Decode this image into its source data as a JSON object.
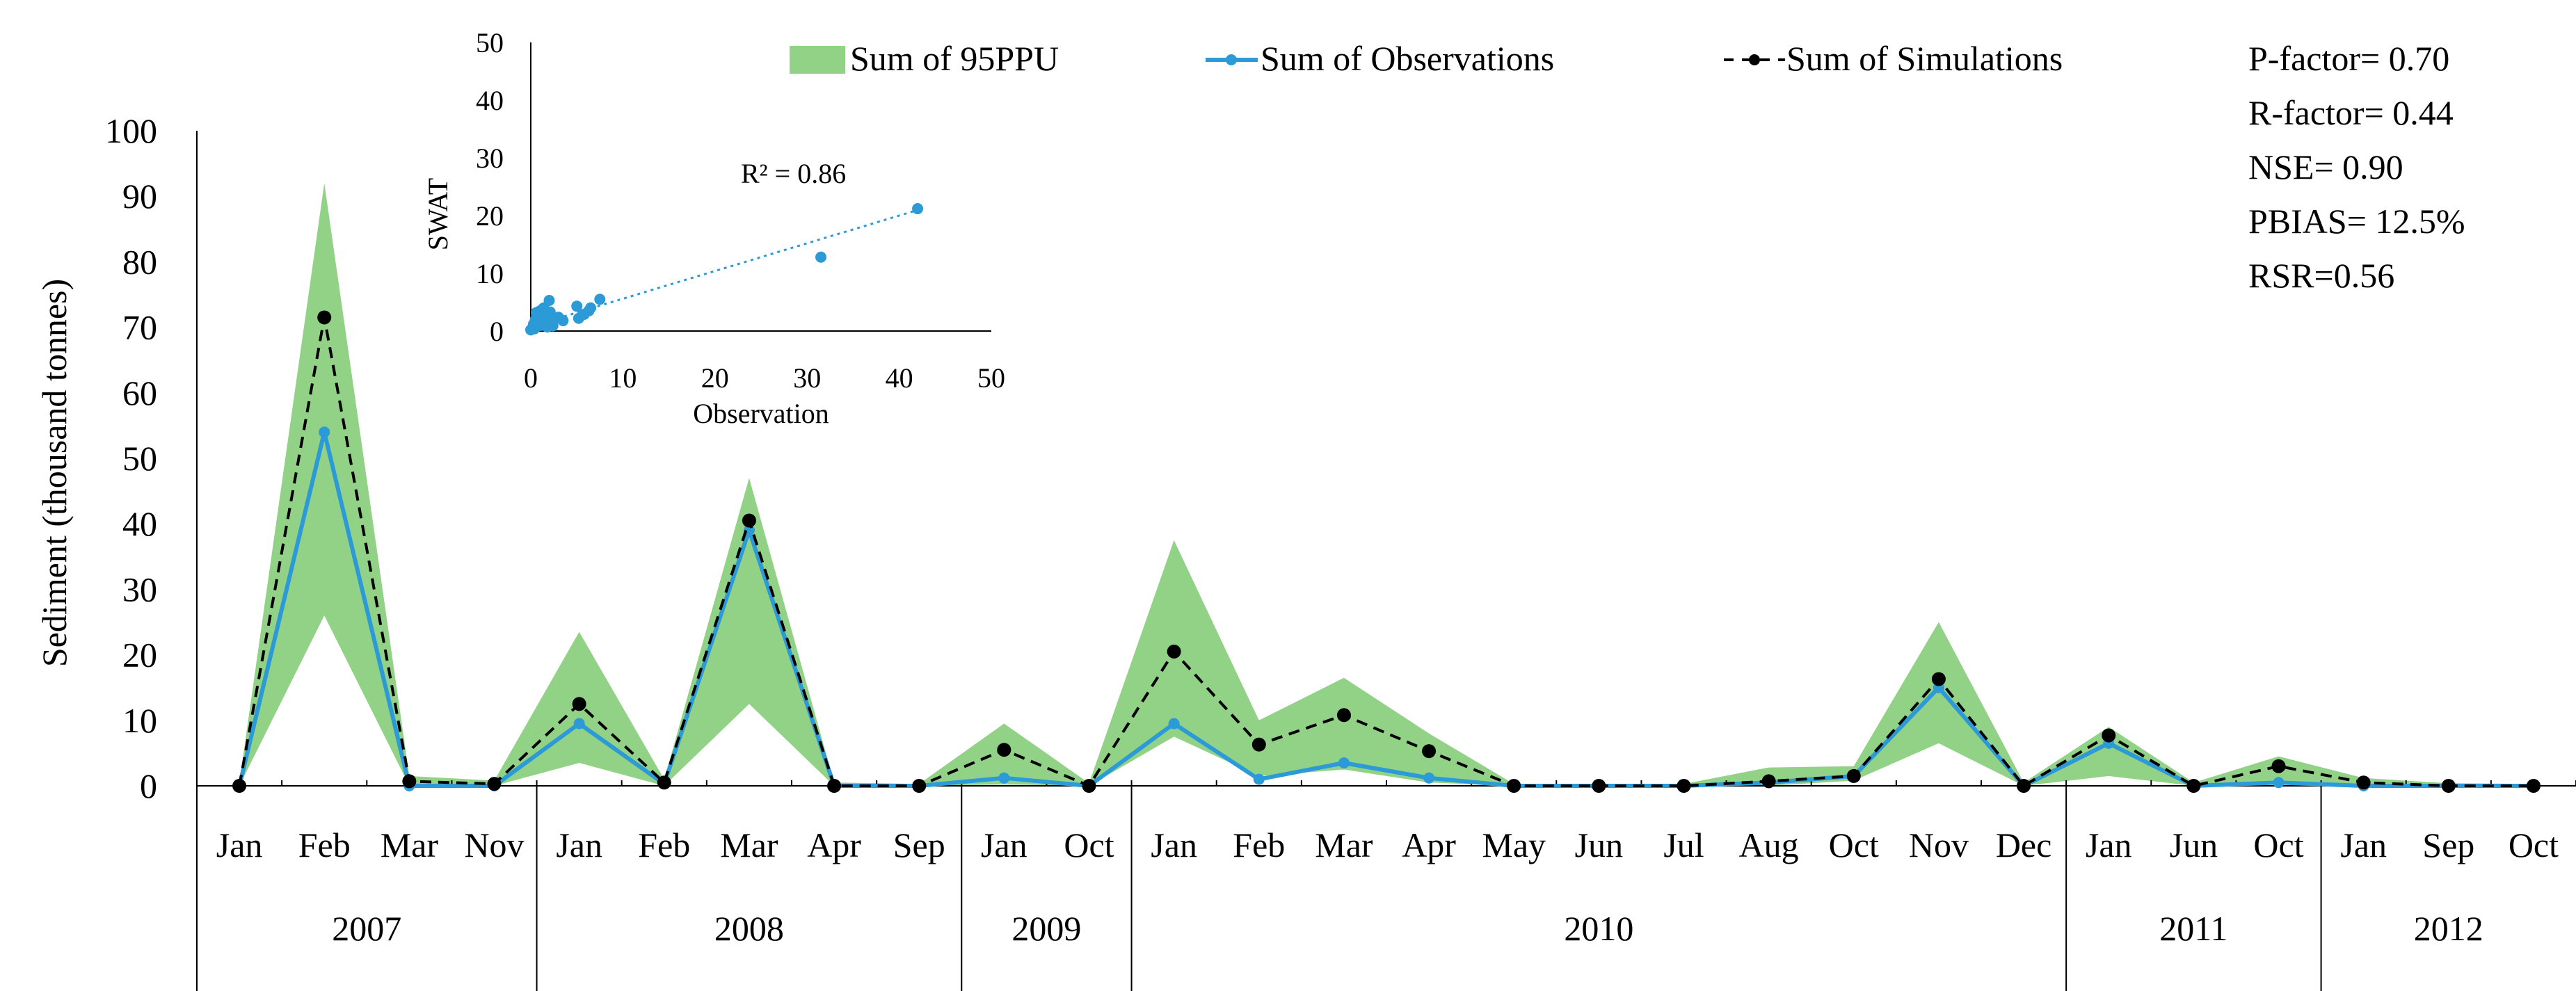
{
  "colors": {
    "band": "#92d286",
    "obs": "#2b9ad6",
    "sim": "#000000",
    "axis": "#000000",
    "trend": "#2b9ad6"
  },
  "chart_data": [
    {
      "type": "area",
      "ylabel": "Sediment (thousand tonnes)",
      "ylim": [
        0,
        100
      ],
      "yticks": [
        0,
        10,
        20,
        30,
        40,
        50,
        60,
        70,
        80,
        90,
        100
      ],
      "categories": [
        "Jan",
        "Feb",
        "Mar",
        "Nov",
        "Jan",
        "Feb",
        "Mar",
        "Apr",
        "Sep",
        "Jan",
        "Oct",
        "Jan",
        "Feb",
        "Mar",
        "Apr",
        "May",
        "Jun",
        "Jul",
        "Aug",
        "Oct",
        "Nov",
        "Dec",
        "Jan",
        "Jun",
        "Oct",
        "Jan",
        "Sep",
        "Oct"
      ],
      "year_groups": [
        {
          "label": "2007",
          "count": 4
        },
        {
          "label": "2008",
          "count": 5
        },
        {
          "label": "2009",
          "count": 2
        },
        {
          "label": "2010",
          "count": 11
        },
        {
          "label": "2011",
          "count": 3
        },
        {
          "label": "2012",
          "count": 3
        }
      ],
      "series": [
        {
          "name": "Sum of 95PPU",
          "kind": "band",
          "upper": [
            0.5,
            92,
            1.5,
            0.8,
            23.5,
            1.0,
            47,
            0.5,
            0.3,
            9.5,
            0.4,
            37.5,
            10,
            16.5,
            8,
            0.3,
            0.2,
            0.3,
            2.8,
            3.0,
            25,
            0.5,
            9,
            0.5,
            4.5,
            1.2,
            0.4,
            0.3
          ],
          "lower": [
            0,
            26,
            0,
            0,
            3.5,
            0,
            12.5,
            0,
            0,
            0.2,
            0,
            7.5,
            1.5,
            2.5,
            0.5,
            0,
            0,
            0,
            0,
            0.8,
            6.5,
            0,
            1.5,
            0,
            0.2,
            0,
            0,
            0
          ]
        },
        {
          "name": "Sum of Observations",
          "kind": "line",
          "values": [
            0,
            54,
            0,
            0,
            9.5,
            0.3,
            39,
            0,
            0,
            1.2,
            0,
            9.5,
            1,
            3.5,
            1.2,
            0,
            0,
            0,
            0.5,
            1.5,
            15,
            0,
            6.5,
            0,
            0.5,
            0,
            0,
            0
          ]
        },
        {
          "name": "Sum of Simulations",
          "kind": "dashed",
          "values": [
            0,
            71.5,
            0.7,
            0.3,
            12.5,
            0.5,
            40.5,
            0,
            0,
            5.5,
            0,
            20.5,
            6.3,
            10.8,
            5.3,
            0,
            0,
            0,
            0.7,
            1.5,
            16.3,
            0,
            7.7,
            0,
            3,
            0.5,
            0,
            0
          ]
        }
      ]
    },
    {
      "type": "scatter",
      "xlabel": "Observation",
      "ylabel": "SWAT",
      "xlim": [
        0,
        50
      ],
      "ylim": [
        0,
        50
      ],
      "xticks": [
        0,
        10,
        20,
        30,
        40,
        50
      ],
      "yticks": [
        0,
        10,
        20,
        30,
        40,
        50
      ],
      "r2_label": "R² = 0.86",
      "trendline": {
        "slope": 0.48,
        "intercept": 0.8
      },
      "points": [
        [
          0,
          0.2
        ],
        [
          0.2,
          0.6
        ],
        [
          0.3,
          1.2
        ],
        [
          0.4,
          0.4
        ],
        [
          0.5,
          2.0
        ],
        [
          0.6,
          3.2
        ],
        [
          0.7,
          1.5
        ],
        [
          0.8,
          0.9
        ],
        [
          1,
          3.5
        ],
        [
          1.1,
          2.3
        ],
        [
          1.2,
          1.0
        ],
        [
          1.4,
          4.0
        ],
        [
          1.5,
          2.5
        ],
        [
          1.6,
          1.6
        ],
        [
          1.8,
          0.7
        ],
        [
          2,
          5.3
        ],
        [
          2.1,
          3.3
        ],
        [
          2.3,
          1.4
        ],
        [
          2.6,
          2.1
        ],
        [
          3,
          2.4
        ],
        [
          3.5,
          1.8
        ],
        [
          5,
          4.3
        ],
        [
          5.2,
          2.2
        ],
        [
          5.8,
          2.9
        ],
        [
          6.3,
          3.5
        ],
        [
          6.5,
          4.0
        ],
        [
          7.5,
          5.5
        ],
        [
          31.5,
          12.8
        ],
        [
          42,
          21.2
        ],
        [
          0.1,
          0.3
        ],
        [
          1.3,
          1.8
        ],
        [
          2.4,
          0.9
        ]
      ]
    }
  ],
  "legend": {
    "band": "Sum of 95PPU",
    "obs": "Sum of Observations",
    "sim": "Sum of Simulations"
  },
  "stats": {
    "p_factor": "P-factor= 0.70",
    "r_factor": "R-factor= 0.44",
    "nse": "NSE= 0.90",
    "pbias": "PBIAS= 12.5%",
    "rsr": "RSR=0.56"
  }
}
